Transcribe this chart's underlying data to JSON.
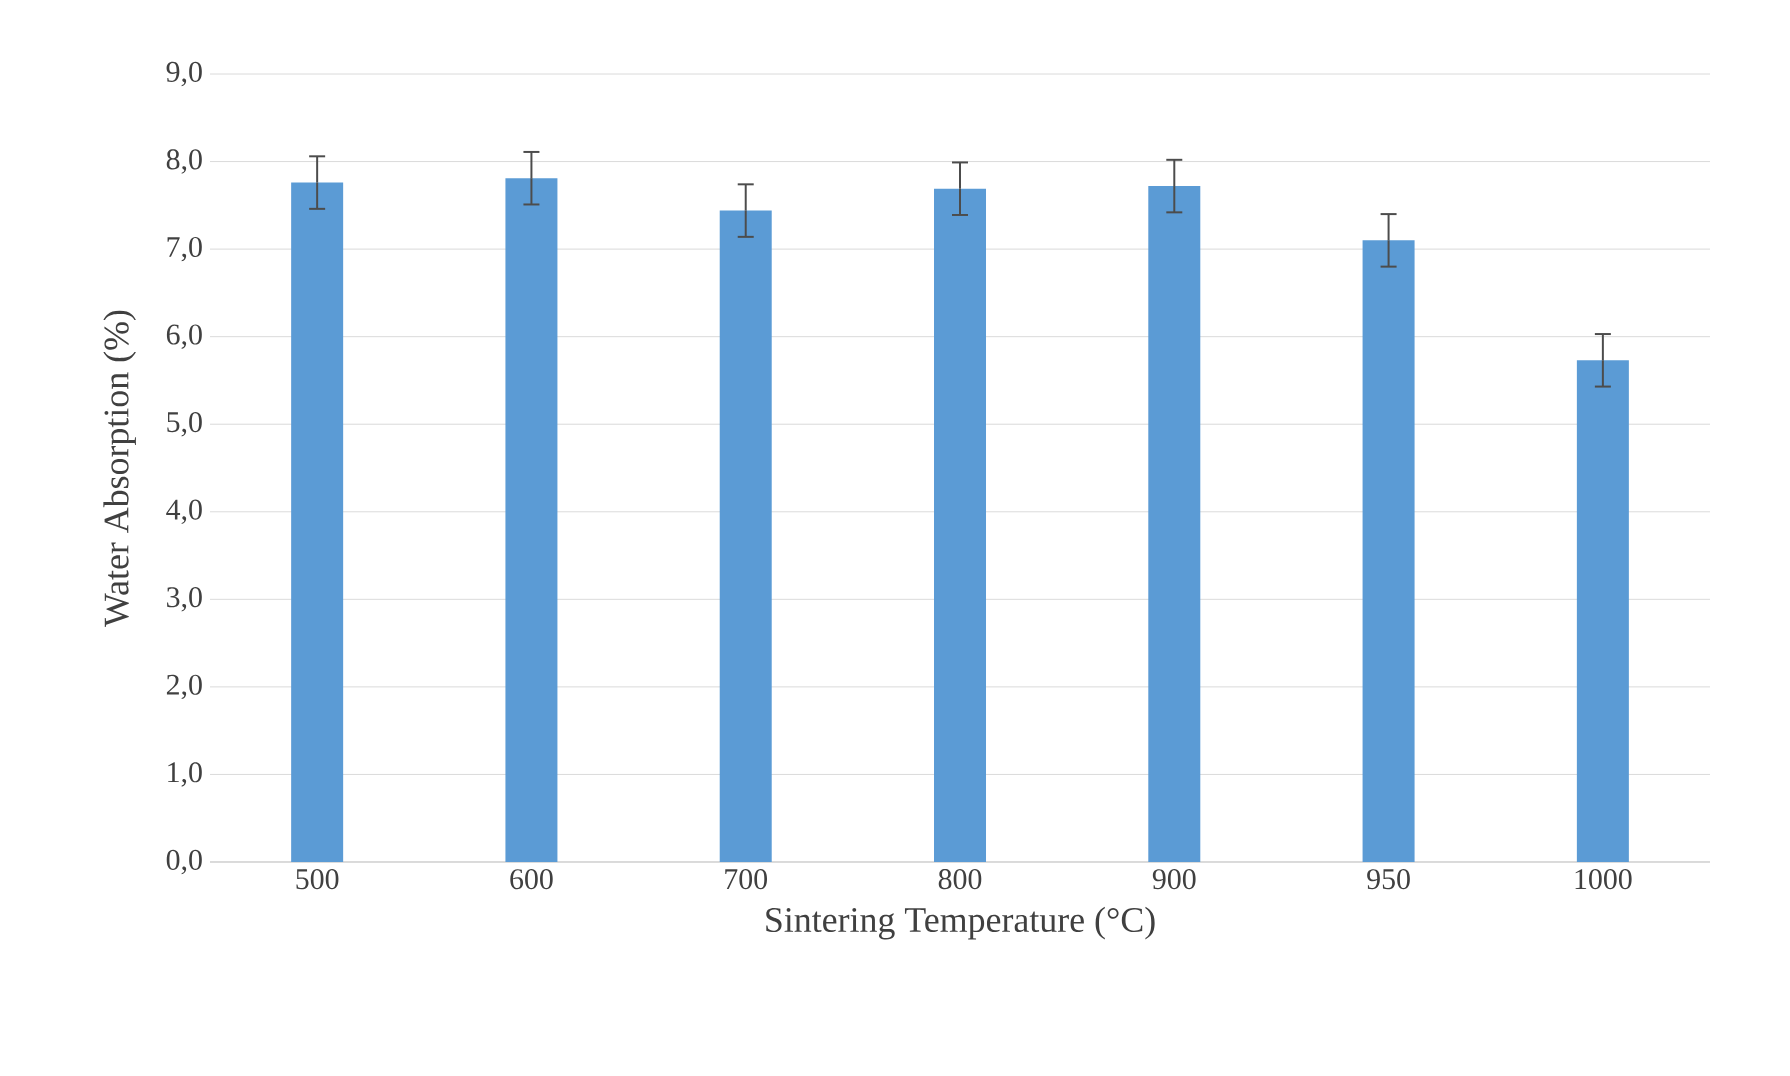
{
  "chart_data": {
    "type": "bar",
    "xlabel": "Sintering Temperature (°C)",
    "ylabel": "Water Absorption (%)",
    "categories": [
      "500",
      "600",
      "700",
      "800",
      "900",
      "950",
      "1000"
    ],
    "values": [
      7.76,
      7.81,
      7.44,
      7.69,
      7.72,
      7.1,
      5.73
    ],
    "errors": [
      0.3,
      0.3,
      0.3,
      0.3,
      0.3,
      0.3,
      0.3
    ],
    "color": "#5b9bd5",
    "grid": "y",
    "ylim": [
      0,
      9
    ],
    "yticks": [
      {
        "value": 0,
        "label": "0,0"
      },
      {
        "value": 1,
        "label": "1,0"
      },
      {
        "value": 2,
        "label": "2,0"
      },
      {
        "value": 3,
        "label": "3,0"
      },
      {
        "value": 4,
        "label": "4,0"
      },
      {
        "value": 5,
        "label": "5,0"
      },
      {
        "value": 6,
        "label": "6,0"
      },
      {
        "value": 7,
        "label": "7,0"
      },
      {
        "value": 8,
        "label": "8,0"
      },
      {
        "value": 9,
        "label": "9,0"
      }
    ]
  }
}
